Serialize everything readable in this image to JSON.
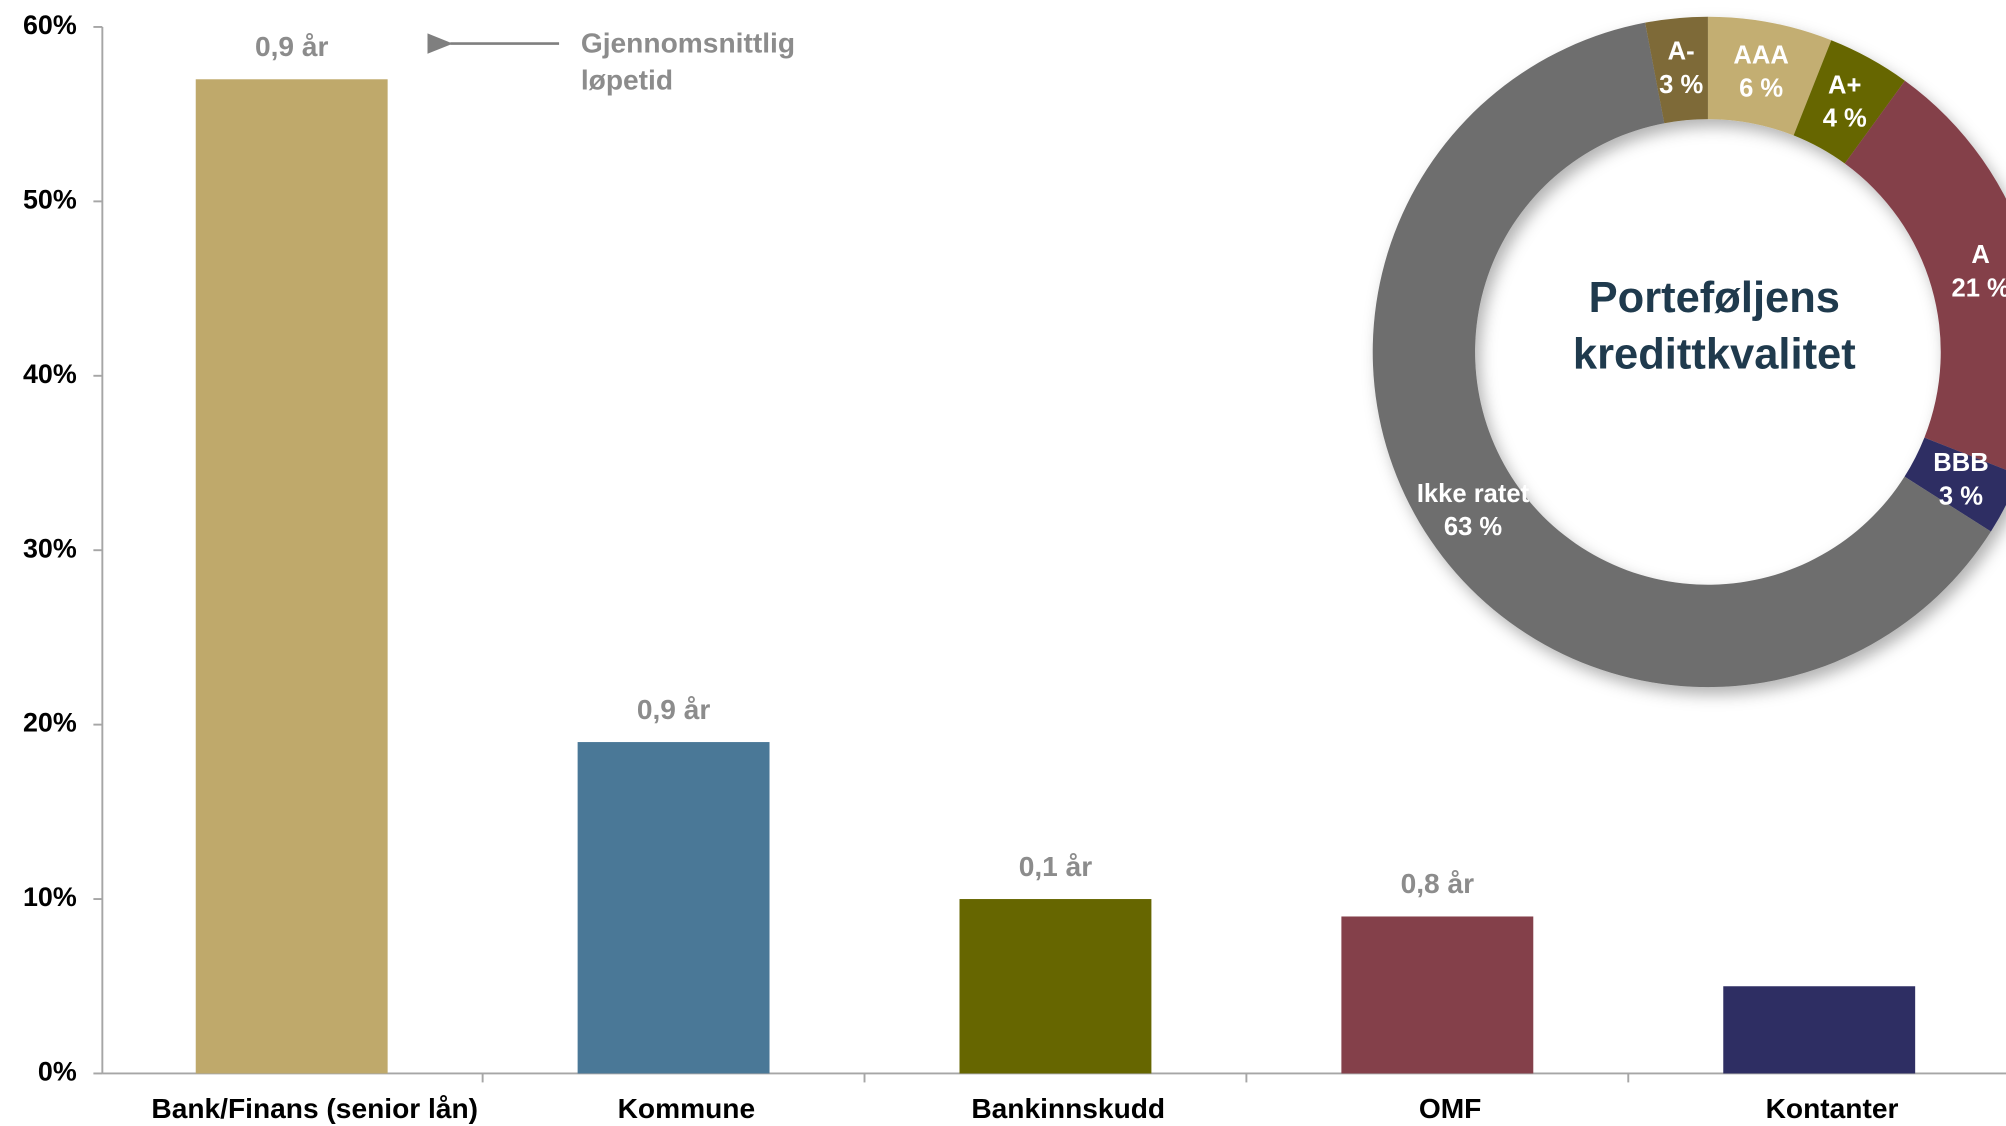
{
  "chart_data": [
    {
      "type": "bar",
      "categories": [
        "Bank/Finans (senior lån)",
        "Kommune",
        "Bankinnskudd",
        "OMF",
        "Kontanter"
      ],
      "values": [
        57,
        19,
        10,
        9,
        5
      ],
      "colors": [
        "#bfa96b",
        "#4a7897",
        "#666600",
        "#84404a",
        "#2e2e63"
      ],
      "annotations": [
        "0,9 år",
        "0,9 år",
        "0,1 år",
        "0,8 år",
        null
      ],
      "arrow_annotation": "Gjennomsnittlig løpetid",
      "ylim": [
        0,
        60
      ],
      "yticks": [
        {
          "value": 0,
          "label": "0%"
        },
        {
          "value": 10,
          "label": "10%"
        },
        {
          "value": 20,
          "label": "20%"
        },
        {
          "value": 30,
          "label": "30%"
        },
        {
          "value": 40,
          "label": "40%"
        },
        {
          "value": 50,
          "label": "50%"
        },
        {
          "value": 60,
          "label": "60%"
        }
      ]
    },
    {
      "type": "pie",
      "title": "Porteføljens kredittkvalitet",
      "categories": [
        "AAA",
        "A+",
        "A",
        "BBB",
        "Ikke ratet",
        "A-"
      ],
      "values": [
        6,
        4,
        21,
        3,
        63,
        3
      ],
      "value_labels": [
        "6 %",
        "4 %",
        "21 %",
        "3 %",
        "63 %",
        "3 %"
      ],
      "colors": [
        "#c3ae72",
        "#666600",
        "#84404a",
        "#2e2e63",
        "#6e6e6e",
        "#7e6a38"
      ]
    }
  ]
}
